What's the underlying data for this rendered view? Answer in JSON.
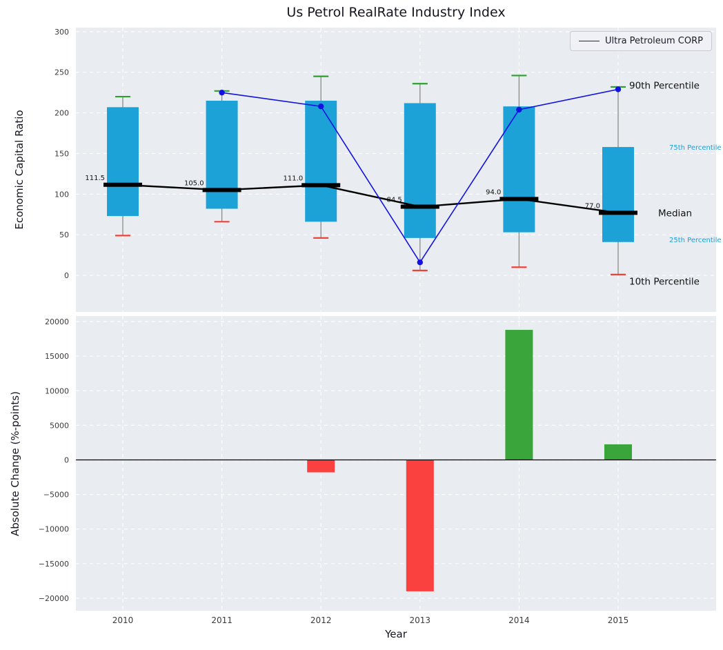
{
  "figure_title": "Us Petrol RealRate Industry Index",
  "chart_data": [
    {
      "type": "boxplot-percentiles-with-line",
      "title": "Us Petrol RealRate Industry Index",
      "ylabel": "Economic Capital Ratio",
      "ylim": [
        -45,
        305
      ],
      "yticks": [
        0,
        50,
        100,
        150,
        200,
        250,
        300
      ],
      "grid": true,
      "categories": [
        "2010",
        "2011",
        "2012",
        "2013",
        "2014",
        "2015"
      ],
      "boxes": [
        {
          "year": 2010,
          "p10": 49,
          "p25": 73,
          "median": 111.5,
          "p75": 207,
          "p90": 220
        },
        {
          "year": 2011,
          "p10": 66,
          "p25": 82,
          "median": 105.0,
          "p75": 215,
          "p90": 227
        },
        {
          "year": 2012,
          "p10": 46,
          "p25": 66,
          "median": 111.0,
          "p75": 215,
          "p90": 245
        },
        {
          "year": 2013,
          "p10": 6,
          "p25": 46,
          "median": 84.5,
          "p75": 212,
          "p90": 236
        },
        {
          "year": 2014,
          "p10": 10,
          "p25": 53,
          "median": 94.0,
          "p75": 208,
          "p90": 246
        },
        {
          "year": 2015,
          "p10": 1,
          "p25": 41,
          "median": 77.0,
          "p75": 158,
          "p90": 232
        }
      ],
      "median_labels": [
        "111.5",
        "105.0",
        "111.0",
        "84.5",
        "94.0",
        "77.0"
      ],
      "series": [
        {
          "name": "Ultra Petroleum CORP",
          "color": "#1212e0",
          "x": [
            2011,
            2012,
            2013,
            2014,
            2015
          ],
          "y": [
            225,
            208,
            16,
            204,
            229
          ]
        }
      ],
      "legend": {
        "position": "upper-right",
        "entries": [
          {
            "label": "Ultra Petroleum CORP",
            "color": "#1212e0"
          }
        ]
      },
      "annotations": [
        {
          "text": "90th Percentile",
          "value": 234,
          "size": 13.5,
          "color": "#111111",
          "x_offset": 16
        },
        {
          "text": "75th Percentile",
          "value": 158,
          "size": 10,
          "color": "#1b9fd8",
          "x_offset": 74
        },
        {
          "text": "Median",
          "value": 77,
          "size": 13.5,
          "color": "#111111",
          "x_offset": 58
        },
        {
          "text": "25th Percentile",
          "value": 44,
          "size": 10,
          "color": "#1b9fd8",
          "x_offset": 74
        },
        {
          "text": "10th Percentile",
          "value": -7,
          "size": 13.5,
          "color": "#111111",
          "x_offset": 16
        }
      ],
      "colors": {
        "box": "#1da2d8",
        "whisker": "#8a8a8a",
        "cap_top": "#2ca02c",
        "cap_bottom": "#ef4237",
        "median": "#000000"
      }
    },
    {
      "type": "bar",
      "ylabel": "Absolute Change (%-points)",
      "xlabel": "Year",
      "ylim": [
        -21800,
        20800
      ],
      "yticks": [
        -20000,
        -15000,
        -10000,
        -5000,
        0,
        5000,
        10000,
        15000,
        20000
      ],
      "grid": true,
      "zero_line": true,
      "categories": [
        "2010",
        "2011",
        "2012",
        "2013",
        "2014",
        "2015"
      ],
      "values": [
        0,
        0,
        -1800,
        -19000,
        18800,
        2250
      ],
      "colors": {
        "positive": "#3aa53a",
        "negative": "#fb4040"
      }
    }
  ]
}
